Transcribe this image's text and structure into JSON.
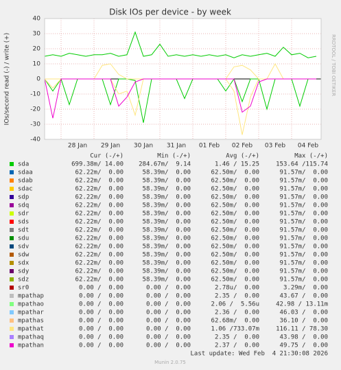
{
  "chart_data": {
    "type": "line",
    "title": "Disk IOs per device - by week",
    "y_label": "IOs/second read (-) / write (+)",
    "side_label": "RRDTOOL / TOBI OETIKER",
    "categories": [
      null,
      null,
      null,
      null,
      "28 Jan",
      null,
      null,
      null,
      "29 Jan",
      null,
      null,
      null,
      "30 Jan",
      null,
      null,
      null,
      "31 Jan",
      null,
      null,
      null,
      "01 Feb",
      null,
      null,
      null,
      "02 Feb",
      null,
      null,
      null,
      "03 Feb",
      null,
      null,
      null,
      "04 Feb",
      null
    ],
    "ylim": [
      -40,
      40
    ],
    "yticks": [
      -40,
      -30,
      -20,
      -10,
      0,
      10,
      20,
      30,
      40
    ],
    "grid": true,
    "columns": [
      "Cur (-/+)",
      "Min (-/+)",
      "Avg (-/+)",
      "Max (-/+)"
    ],
    "series": [
      {
        "name": "sda",
        "color": "#00cc00",
        "stats": [
          "699.38m/ 14.00",
          "284.67m/  9.14",
          "  1.46 / 15.25",
          "153.64 /115.74"
        ],
        "values": [
          15,
          16,
          15,
          17,
          16,
          15,
          16,
          16,
          17,
          15,
          16,
          31,
          15,
          16,
          23,
          15,
          16,
          15,
          16,
          15,
          16,
          15,
          16,
          14,
          16,
          15,
          16,
          17,
          15,
          21,
          16,
          17,
          14,
          15
        ],
        "read_values": [
          0,
          -8,
          0,
          -17,
          0,
          0,
          0,
          0,
          -17,
          0,
          0,
          -1,
          -29,
          0,
          0,
          0,
          0,
          -13,
          0,
          0,
          0,
          0,
          -8,
          0,
          -15,
          0,
          0,
          -20,
          0,
          0,
          0,
          -18,
          0,
          0
        ]
      },
      {
        "name": "sdaa",
        "color": "#0066b3",
        "stats": [
          " 62.22m/  0.00",
          " 58.39m/  0.00",
          " 62.50m/  0.00",
          " 91.57m/  0.00"
        ]
      },
      {
        "name": "sdab",
        "color": "#ff8000",
        "stats": [
          " 62.22m/  0.00",
          " 58.39m/  0.00",
          " 62.50m/  0.00",
          " 91.57m/  0.00"
        ]
      },
      {
        "name": "sdac",
        "color": "#ffcc00",
        "stats": [
          " 62.22m/  0.00",
          " 58.39m/  0.00",
          " 62.50m/  0.00",
          " 91.57m/  0.00"
        ]
      },
      {
        "name": "sdp",
        "color": "#330099",
        "stats": [
          " 62.22m/  0.00",
          " 58.39m/  0.00",
          " 62.50m/  0.00",
          " 91.57m/  0.00"
        ]
      },
      {
        "name": "sdq",
        "color": "#990099",
        "stats": [
          " 62.22m/  0.00",
          " 58.39m/  0.00",
          " 62.50m/  0.00",
          " 91.57m/  0.00"
        ]
      },
      {
        "name": "sdr",
        "color": "#ccff00",
        "stats": [
          " 62.22m/  0.00",
          " 58.39m/  0.00",
          " 62.50m/  0.00",
          " 91.57m/  0.00"
        ]
      },
      {
        "name": "sds",
        "color": "#ff0000",
        "stats": [
          " 62.22m/  0.00",
          " 58.39m/  0.00",
          " 62.50m/  0.00",
          " 91.57m/  0.00"
        ]
      },
      {
        "name": "sdt",
        "color": "#808080",
        "stats": [
          " 62.22m/  0.00",
          " 58.39m/  0.00",
          " 62.50m/  0.00",
          " 91.57m/  0.00"
        ]
      },
      {
        "name": "sdu",
        "color": "#008f00",
        "stats": [
          " 62.22m/  0.00",
          " 58.39m/  0.00",
          " 62.50m/  0.00",
          " 91.57m/  0.00"
        ]
      },
      {
        "name": "sdv",
        "color": "#00487d",
        "stats": [
          " 62.22m/  0.00",
          " 58.39m/  0.00",
          " 62.50m/  0.00",
          " 91.57m/  0.00"
        ]
      },
      {
        "name": "sdw",
        "color": "#b35a00",
        "stats": [
          " 62.22m/  0.00",
          " 58.39m/  0.00",
          " 62.50m/  0.00",
          " 91.57m/  0.00"
        ]
      },
      {
        "name": "sdx",
        "color": "#b38f00",
        "stats": [
          " 62.22m/  0.00",
          " 58.39m/  0.00",
          " 62.50m/  0.00",
          " 91.57m/  0.00"
        ]
      },
      {
        "name": "sdy",
        "color": "#6b006b",
        "stats": [
          " 62.22m/  0.00",
          " 58.39m/  0.00",
          " 62.50m/  0.00",
          " 91.57m/  0.00"
        ]
      },
      {
        "name": "sdz",
        "color": "#8fb300",
        "stats": [
          " 62.22m/  0.00",
          " 58.39m/  0.00",
          " 62.50m/  0.00",
          " 91.57m/  0.00"
        ]
      },
      {
        "name": "sr0",
        "color": "#b30000",
        "stats": [
          "  0.00 /  0.00",
          "  0.00 /  0.00",
          "  2.78u/  0.00",
          "  3.29m/  0.00"
        ]
      },
      {
        "name": "mpathap",
        "color": "#bebebe",
        "stats": [
          "  0.00 /  0.00",
          "  0.00 /  0.00",
          "  2.35 /  0.00",
          " 43.67 /  0.00"
        ]
      },
      {
        "name": "mpathao",
        "color": "#80ff80",
        "stats": [
          "  0.00 /  0.00",
          "  0.00 /  0.00",
          "  2.06 /  5.56u",
          " 42.98 / 13.11m"
        ]
      },
      {
        "name": "mpathar",
        "color": "#80c9ff",
        "stats": [
          "  0.00 /  0.00",
          "  0.00 /  0.00",
          "  2.36 /  0.00",
          " 46.03 /  0.00"
        ]
      },
      {
        "name": "mpathas",
        "color": "#ffc080",
        "stats": [
          "  0.00 /  0.00",
          "  0.00 /  0.00",
          " 62.68m/  0.00",
          " 36.10 /  0.00"
        ]
      },
      {
        "name": "mpathat",
        "color": "#ffe680",
        "stats": [
          "  0.00 /  0.00",
          "  0.00 /  0.00",
          "  1.06 /733.07m",
          "116.11 / 78.30"
        ],
        "values": [
          0,
          0,
          0,
          0,
          0,
          0,
          0,
          9,
          10,
          3,
          0,
          0,
          0,
          0,
          0,
          0,
          0,
          0,
          0,
          0,
          0,
          0,
          0,
          8,
          9,
          6,
          0,
          0,
          10,
          0,
          0,
          0,
          0,
          0
        ],
        "read_values": [
          0,
          -6,
          0,
          0,
          0,
          0,
          0,
          0,
          0,
          -10,
          -8,
          -24,
          0,
          0,
          0,
          0,
          0,
          0,
          0,
          0,
          0,
          0,
          0,
          -8,
          -37,
          -12,
          0,
          0,
          0,
          0,
          0,
          0,
          0,
          0
        ]
      },
      {
        "name": "mpathaq",
        "color": "#aa80ff",
        "stats": [
          "  0.00 /  0.00",
          "  0.00 /  0.00",
          "  2.35 /  0.00",
          " 43.98 /  0.00"
        ]
      },
      {
        "name": "mpathan",
        "color": "#ee00cc",
        "stats": [
          "  0.00 /  0.00",
          "  0.00 /  0.00",
          "  2.37 /  0.00",
          " 49.75 /  0.00"
        ],
        "read_values": [
          0,
          -26,
          0,
          0,
          0,
          0,
          0,
          0,
          0,
          -18,
          -12,
          -2,
          0,
          0,
          0,
          0,
          0,
          0,
          0,
          0,
          0,
          0,
          0,
          0,
          -22,
          -18,
          -2,
          0,
          0,
          0,
          0,
          0,
          0,
          0
        ]
      }
    ],
    "last_update": "Last update: Wed Feb  4 21:30:08 2026",
    "footer": "Munin 2.0.75"
  }
}
